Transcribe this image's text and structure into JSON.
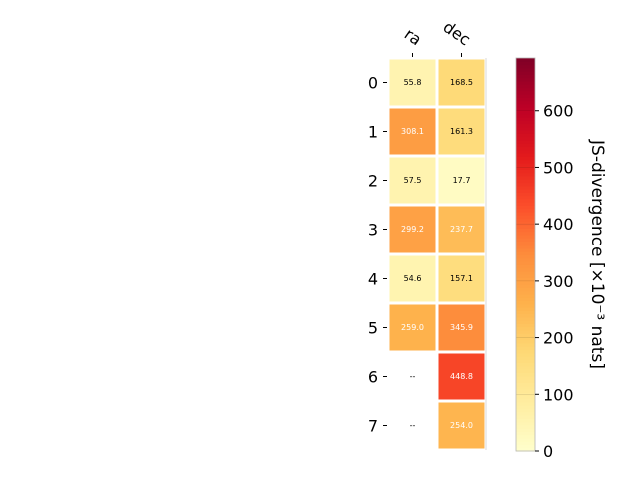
{
  "chart_data": {
    "type": "heatmap",
    "columns": [
      "ra",
      "dec"
    ],
    "rows": [
      "0",
      "1",
      "2",
      "3",
      "4",
      "5",
      "6",
      "7"
    ],
    "values": [
      [
        55.8,
        168.5
      ],
      [
        308.1,
        161.3
      ],
      [
        57.5,
        17.7
      ],
      [
        299.2,
        237.7
      ],
      [
        54.6,
        157.1
      ],
      [
        259.0,
        345.9
      ],
      [
        null,
        448.8
      ],
      [
        null,
        254.0
      ]
    ],
    "cell_labels": [
      [
        "55.8",
        "168.5"
      ],
      [
        "308.1",
        "161.3"
      ],
      [
        "57.5",
        "17.7"
      ],
      [
        "299.2",
        "237.7"
      ],
      [
        "54.6",
        "157.1"
      ],
      [
        "259.0",
        "345.9"
      ],
      [
        "--",
        "448.8"
      ],
      [
        "--",
        "254.0"
      ]
    ],
    "colorbar": {
      "label": "JS-divergence [×10⁻³ nats]",
      "range": [
        0,
        693
      ],
      "ticks": [
        0,
        100,
        200,
        300,
        400,
        500,
        600
      ],
      "colormap": "YlOrRd"
    },
    "colors": {
      "missing": "#ffffff",
      "cell_border": "#ffffff",
      "text_dark": "#000000",
      "text_light": "#ffffff"
    }
  }
}
